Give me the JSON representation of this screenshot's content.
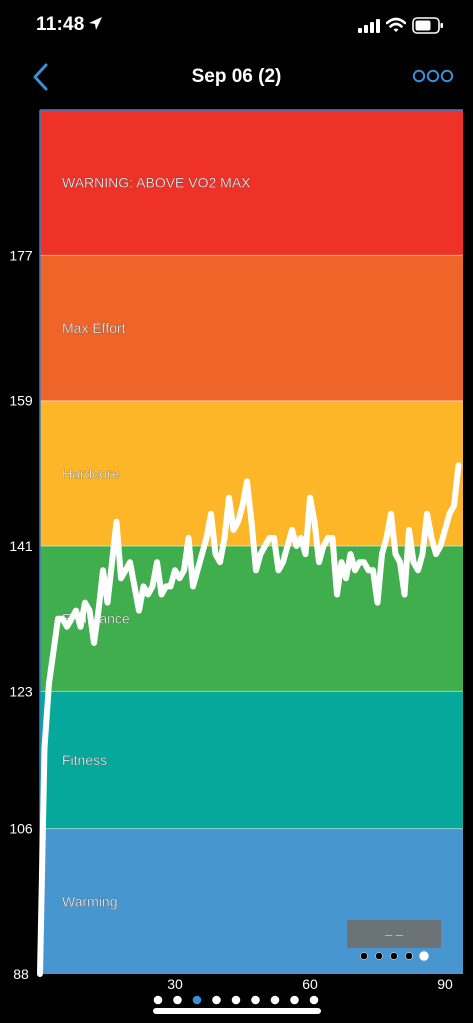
{
  "status_bar": {
    "time": "11:48"
  },
  "nav": {
    "title": "Sep 06 (2)",
    "back_icon": "chevron-left-icon",
    "more_icon": "more-icon"
  },
  "colors": {
    "accent": "#3a8fd6",
    "zone_colors": [
      "#4796d0",
      "#05a89b",
      "#41ae4d",
      "#fcb627",
      "#ef6428",
      "#ef3227"
    ]
  },
  "chart_data": {
    "type": "line",
    "x_ticks": [
      "30",
      "60",
      "90"
    ],
    "y_ticks": [
      "88",
      "106",
      "123",
      "141",
      "159",
      "177"
    ],
    "xlim": [
      0,
      94
    ],
    "zones": [
      {
        "label": "Warming",
        "min": 88,
        "max": 106
      },
      {
        "label": "Fitness",
        "min": 106,
        "max": 123
      },
      {
        "label": "Endurance",
        "min": 123,
        "max": 141
      },
      {
        "label": "Hardcore",
        "min": 141,
        "max": 159
      },
      {
        "label": "Max Effort",
        "min": 159,
        "max": 177
      },
      {
        "label": "WARNING: ABOVE VO2 MAX",
        "min": 177,
        "max": 195
      }
    ],
    "series": [
      {
        "x": [
          0,
          1,
          2,
          3,
          4,
          5,
          6,
          7,
          8,
          9,
          10,
          11,
          12,
          13,
          14,
          15,
          16,
          17,
          18,
          19,
          20,
          21,
          22,
          23,
          24,
          25,
          26,
          27,
          28,
          29,
          30,
          31,
          32,
          33,
          34,
          35,
          36,
          37,
          38,
          39,
          40,
          41,
          42,
          43,
          44,
          45,
          46,
          47,
          48,
          49,
          50,
          51,
          52,
          53,
          54,
          55,
          56,
          57,
          58,
          59,
          60,
          61,
          62,
          63,
          64,
          65,
          66,
          67,
          68,
          69,
          70,
          71,
          72,
          73,
          74,
          75,
          76,
          77,
          78,
          79,
          80,
          81,
          82,
          83,
          84,
          85,
          86,
          87,
          88,
          89,
          90,
          91,
          92,
          93
        ],
        "y": [
          88,
          116,
          124,
          128,
          132,
          132,
          131,
          132,
          133,
          131,
          134,
          133,
          129,
          133,
          138,
          134,
          139,
          144,
          137,
          138,
          139,
          136,
          133,
          136,
          135,
          136,
          139,
          135,
          136,
          136,
          138,
          137,
          138,
          142,
          136,
          138,
          140,
          142,
          145,
          140,
          139,
          142,
          147,
          143,
          144,
          146,
          149,
          144,
          138,
          140,
          141,
          142,
          142,
          138,
          139,
          141,
          143,
          141,
          142,
          140,
          147,
          144,
          139,
          141,
          142,
          142,
          135,
          139,
          137,
          140,
          138,
          139,
          139,
          138,
          138,
          134,
          140,
          142,
          145,
          140,
          139,
          135,
          143,
          139,
          138,
          140,
          145,
          142,
          140,
          141,
          143,
          145,
          146,
          151
        ]
      }
    ],
    "grid": true
  },
  "pagination": {
    "count": 9,
    "active": 2
  },
  "overlay": {
    "label": "– –",
    "dots": 5,
    "active": 4
  }
}
